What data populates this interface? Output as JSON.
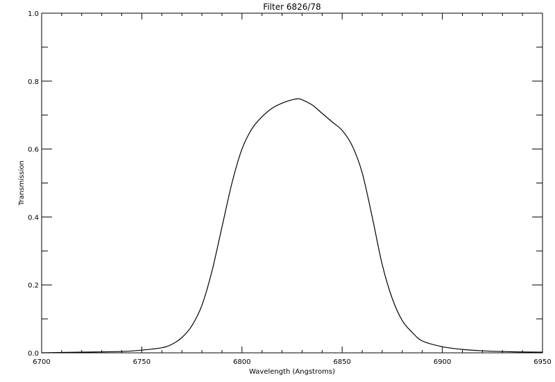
{
  "chart_data": {
    "type": "line",
    "title": "Filter 6826/78",
    "xlabel": "Wavelength (Angstroms)",
    "ylabel": "Transmission",
    "xlim": [
      6700,
      6950
    ],
    "ylim": [
      0,
      1
    ],
    "grid": false,
    "x_ticks": [
      6700,
      6750,
      6800,
      6850,
      6900,
      6950
    ],
    "x_tick_labels": [
      "6700",
      "6750",
      "6800",
      "6850",
      "6900",
      "6950"
    ],
    "y_ticks": [
      0,
      0.2,
      0.4,
      0.6,
      0.8,
      1.0
    ],
    "y_tick_labels": [
      "0.0",
      "0.2",
      "0.4",
      "0.6",
      "0.8",
      "1.0"
    ],
    "series": [
      {
        "x": [
          6700,
          6720,
          6740,
          6750,
          6760,
          6765,
          6770,
          6775,
          6780,
          6785,
          6790,
          6795,
          6800,
          6805,
          6810,
          6815,
          6820,
          6825,
          6828,
          6830,
          6835,
          6840,
          6845,
          6850,
          6855,
          6860,
          6865,
          6870,
          6875,
          6880,
          6885,
          6890,
          6900,
          6910,
          6920,
          6935,
          6950
        ],
        "y": [
          0.0,
          0.002,
          0.004,
          0.008,
          0.015,
          0.025,
          0.045,
          0.08,
          0.14,
          0.24,
          0.37,
          0.5,
          0.6,
          0.66,
          0.695,
          0.72,
          0.735,
          0.745,
          0.748,
          0.745,
          0.73,
          0.705,
          0.68,
          0.655,
          0.61,
          0.53,
          0.4,
          0.26,
          0.16,
          0.095,
          0.06,
          0.035,
          0.018,
          0.01,
          0.006,
          0.003,
          0.002
        ]
      }
    ]
  }
}
